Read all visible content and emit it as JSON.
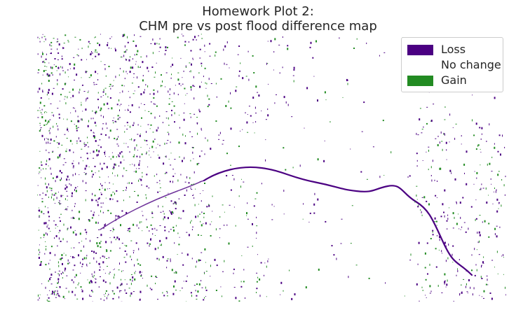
{
  "title": {
    "line1": "Homework Plot 2:",
    "line2": "CHM pre vs post flood difference map"
  },
  "legend": {
    "position": "top-right",
    "items": [
      {
        "label": "Loss",
        "color": "#4b0082"
      },
      {
        "label": "No change",
        "color": "#ffffff"
      },
      {
        "label": "Gain",
        "color": "#228b22"
      }
    ]
  },
  "map": {
    "type": "raster difference map",
    "classes": [
      "Loss",
      "No change",
      "Gain"
    ],
    "background_color": "#ffffff"
  }
}
